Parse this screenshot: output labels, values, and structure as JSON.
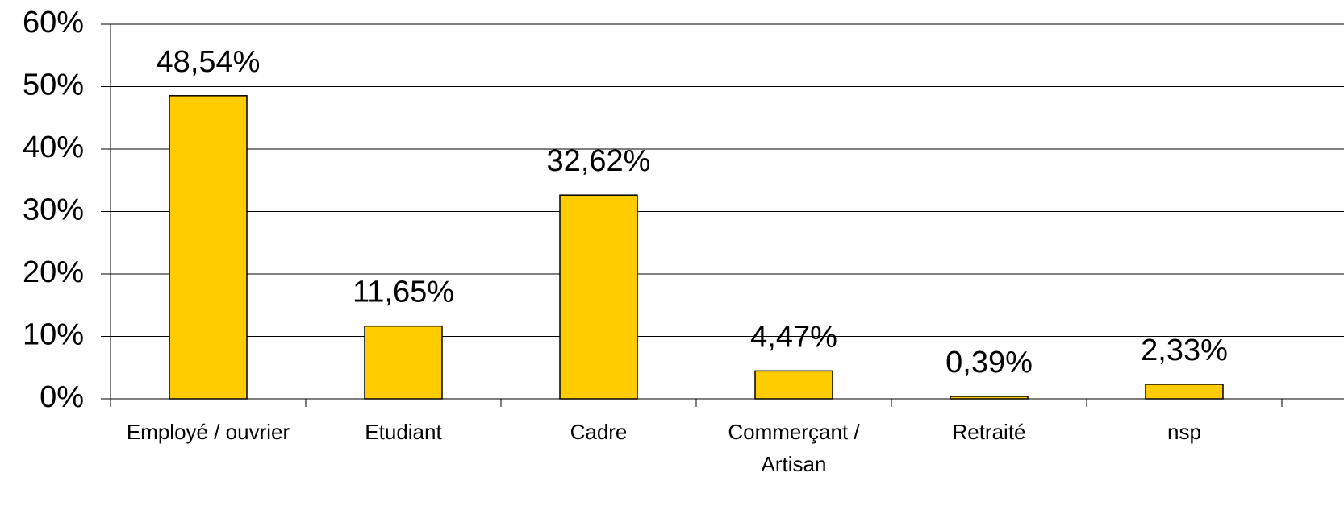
{
  "chart_data": {
    "type": "bar",
    "categories": [
      "Employé / ouvrier",
      "Etudiant",
      "Cadre",
      "Commerçant / Artisan",
      "Retraité",
      "nsp"
    ],
    "values": [
      48.54,
      11.65,
      32.62,
      4.47,
      0.39,
      2.33
    ],
    "value_labels": [
      "48,54%",
      "11,65%",
      "32,62%",
      "4,47%",
      "0,39%",
      "2,33%"
    ],
    "color": "#ffcc00",
    "ylim": [
      0,
      60
    ],
    "yticks": [
      {
        "value": 0,
        "label": "0%"
      },
      {
        "value": 10,
        "label": "10%"
      },
      {
        "value": 20,
        "label": "20%"
      },
      {
        "value": 30,
        "label": "30%"
      },
      {
        "value": 40,
        "label": "40%"
      },
      {
        "value": 50,
        "label": "50%"
      },
      {
        "value": 60,
        "label": "60%"
      }
    ],
    "grid": true
  }
}
